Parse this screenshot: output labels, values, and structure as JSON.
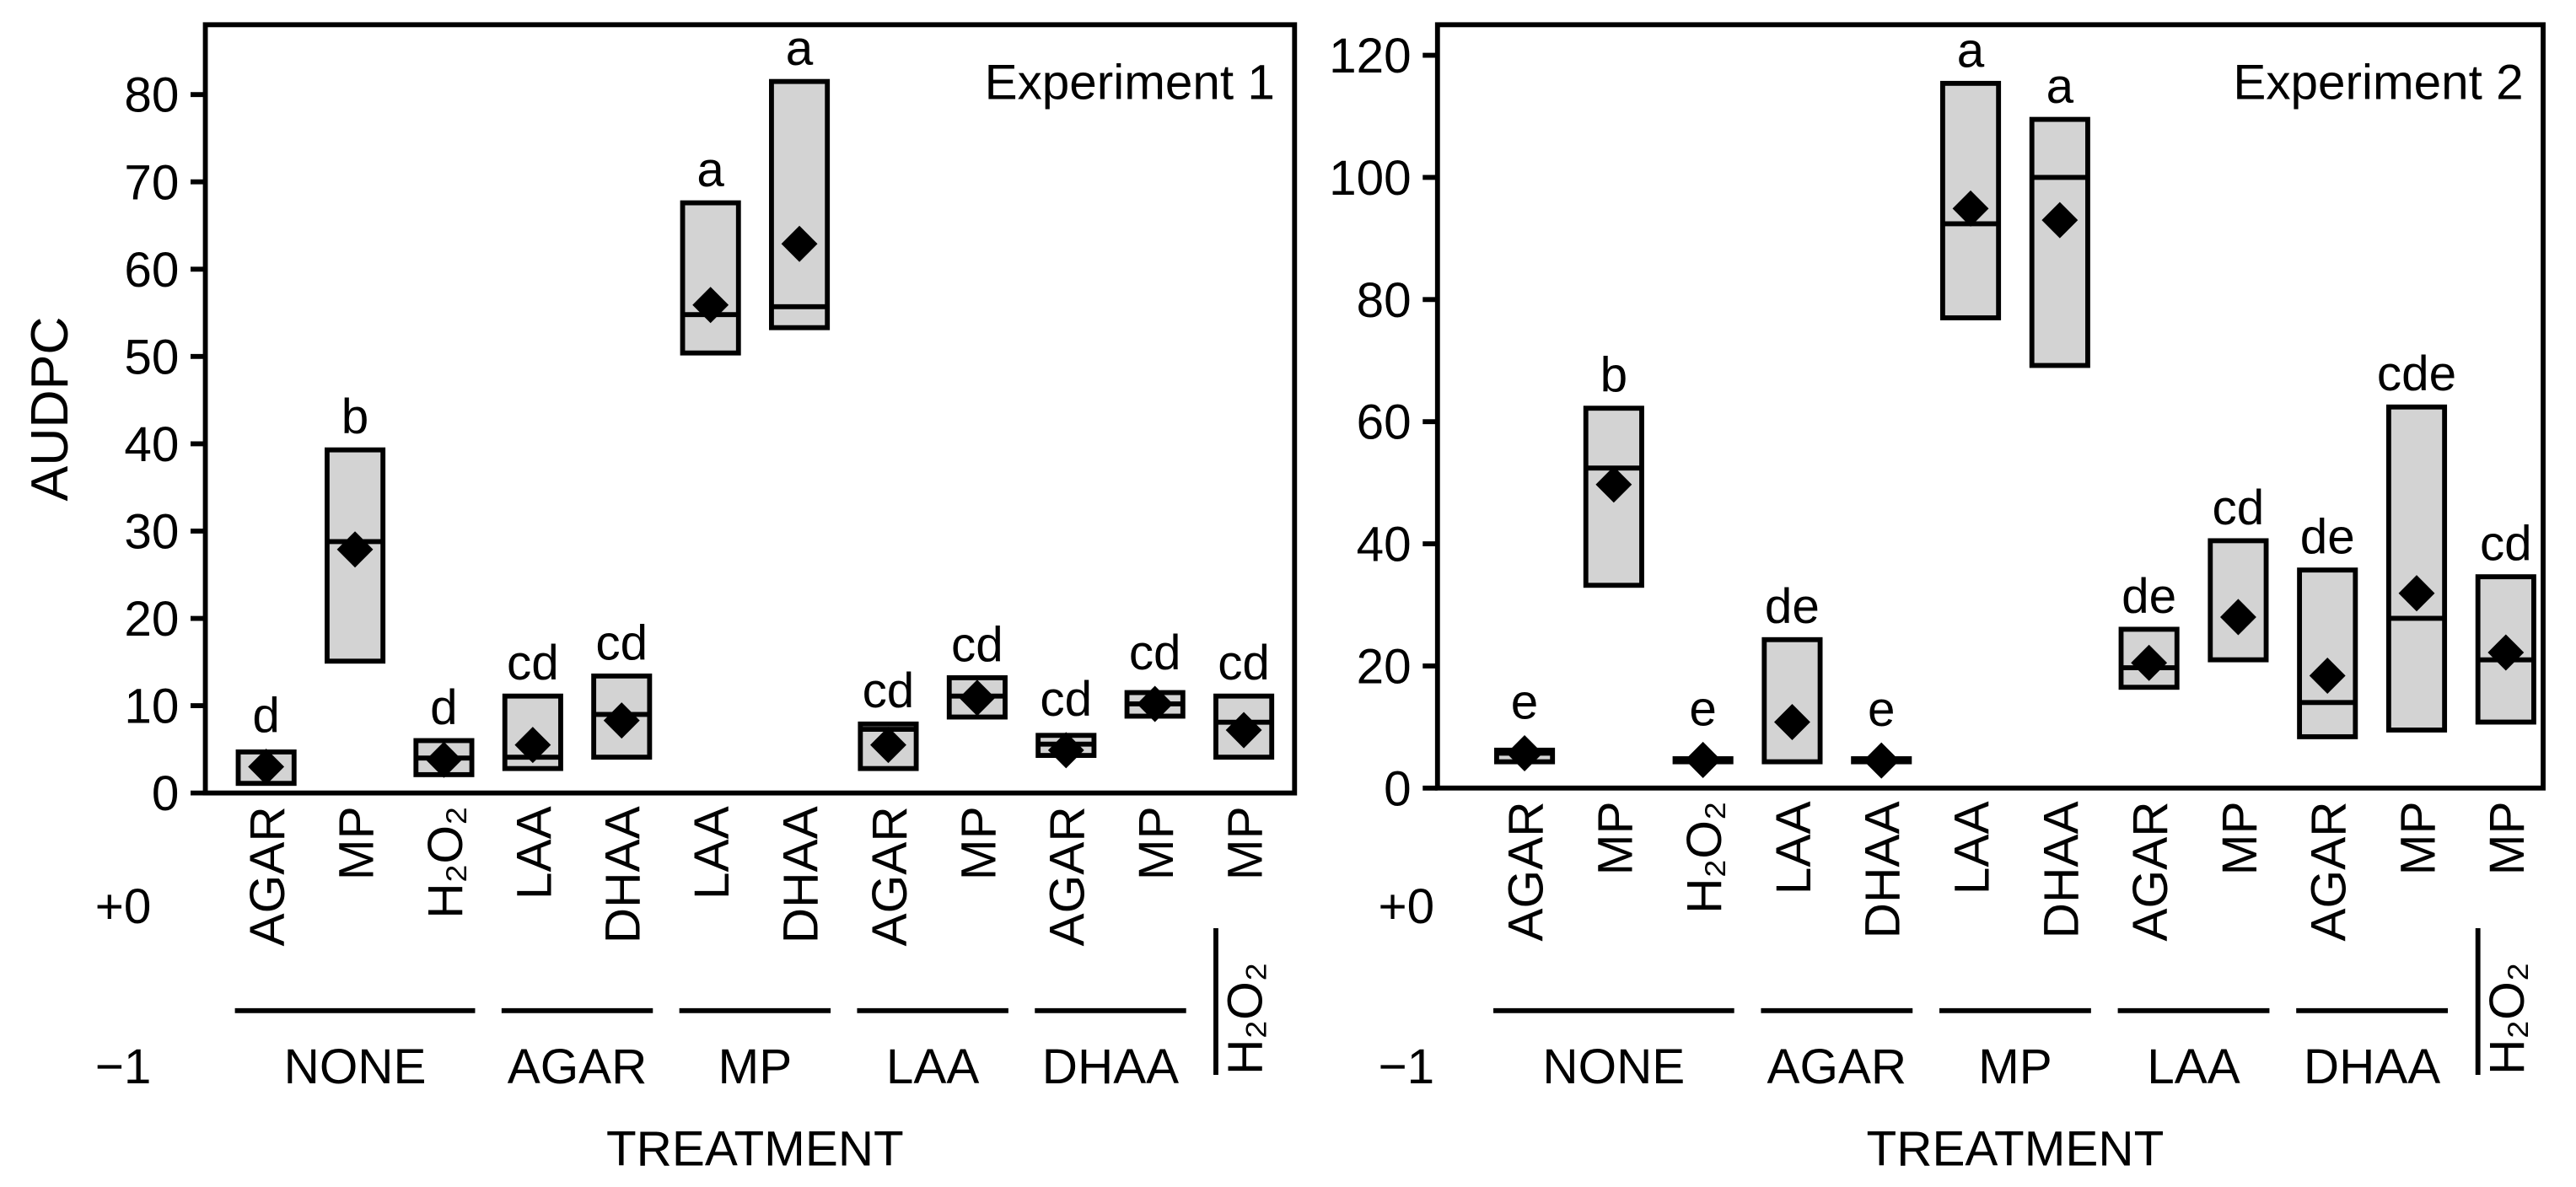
{
  "colors": {
    "background": "#ffffff",
    "box_fill": "#d3d3d3",
    "stroke": "#000000",
    "marker": "#000000"
  },
  "chart_data": [
    {
      "type": "bar",
      "title": "Experiment 1",
      "ylabel": "AUDPC",
      "xlabel": "TREATMENT",
      "ylim": [
        0,
        88
      ],
      "yticks": [
        0,
        10,
        20,
        30,
        40,
        50,
        60,
        70,
        80
      ],
      "row_labels": [
        "+0",
        "−1"
      ],
      "groups": [
        {
          "name": "NONE",
          "orientation": "horizontal"
        },
        {
          "name": "AGAR",
          "orientation": "horizontal"
        },
        {
          "name": "MP",
          "orientation": "horizontal"
        },
        {
          "name": "LAA",
          "orientation": "horizontal"
        },
        {
          "name": "DHAA",
          "orientation": "horizontal"
        },
        {
          "name": "H₂O₂",
          "orientation": "vertical"
        }
      ],
      "categories": [
        {
          "label": "AGAR",
          "group": "NONE",
          "low": 1.1,
          "high": 4.7,
          "median": null,
          "mean": 3.0,
          "letter": "d"
        },
        {
          "label": "MP",
          "group": "NONE",
          "low": 15.1,
          "high": 39.3,
          "median": 28.8,
          "mean": 27.9,
          "letter": "b"
        },
        {
          "label": "H₂O₂",
          "group": "NONE",
          "low": 2.1,
          "high": 6.0,
          "median": 4.0,
          "mean": 3.8,
          "letter": "d"
        },
        {
          "label": "LAA",
          "group": "AGAR",
          "low": 2.8,
          "high": 11.1,
          "median": 4.1,
          "mean": 5.5,
          "letter": "cd"
        },
        {
          "label": "DHAA",
          "group": "AGAR",
          "low": 4.1,
          "high": 13.4,
          "median": 9.0,
          "mean": 8.3,
          "letter": "cd"
        },
        {
          "label": "LAA",
          "group": "MP",
          "low": 50.4,
          "high": 67.6,
          "median": 54.8,
          "mean": 55.9,
          "letter": "a"
        },
        {
          "label": "DHAA",
          "group": "MP",
          "low": 53.3,
          "high": 81.5,
          "median": 55.7,
          "mean": 62.9,
          "letter": "a"
        },
        {
          "label": "AGAR",
          "group": "LAA",
          "low": 2.8,
          "high": 7.9,
          "median": 7.3,
          "mean": 5.5,
          "letter": "cd"
        },
        {
          "label": "MP",
          "group": "LAA",
          "low": 8.7,
          "high": 13.2,
          "median": 11.1,
          "mean": 10.9,
          "letter": "cd"
        },
        {
          "label": "AGAR",
          "group": "DHAA",
          "low": 4.3,
          "high": 6.6,
          "median": 5.6,
          "mean": 4.9,
          "letter": "cd"
        },
        {
          "label": "MP",
          "group": "DHAA",
          "low": 8.8,
          "high": 11.5,
          "median": 10.2,
          "mean": 10.2,
          "letter": "cd"
        },
        {
          "label": "MP",
          "group": "H₂O₂",
          "low": 4.1,
          "high": 11.1,
          "median": 8.1,
          "mean": 7.2,
          "letter": "cd"
        }
      ]
    },
    {
      "type": "bar",
      "title": "Experiment 2",
      "xlabel": "TREATMENT",
      "ylim": [
        0,
        125
      ],
      "yticks": [
        0,
        20,
        40,
        60,
        80,
        100,
        120
      ],
      "row_labels": [
        "+0",
        "−1"
      ],
      "groups": [
        {
          "name": "NONE",
          "orientation": "horizontal"
        },
        {
          "name": "AGAR",
          "orientation": "horizontal"
        },
        {
          "name": "MP",
          "orientation": "horizontal"
        },
        {
          "name": "LAA",
          "orientation": "horizontal"
        },
        {
          "name": "DHAA",
          "orientation": "horizontal"
        },
        {
          "name": "H₂O₂",
          "orientation": "vertical"
        }
      ],
      "categories": [
        {
          "label": "AGAR",
          "group": "NONE",
          "low": 4.3,
          "high": 6.2,
          "median": 5.7,
          "mean": 5.7,
          "letter": "e"
        },
        {
          "label": "MP",
          "group": "NONE",
          "low": 33.2,
          "high": 62.2,
          "median": 52.4,
          "mean": 49.7,
          "letter": "b"
        },
        {
          "label": "H₂O₂",
          "group": "NONE",
          "low": 4.3,
          "high": 4.8,
          "median": 4.6,
          "mean": 4.6,
          "letter": "e"
        },
        {
          "label": "LAA",
          "group": "AGAR",
          "low": 4.3,
          "high": 24.3,
          "median": null,
          "mean": 10.8,
          "letter": "de"
        },
        {
          "label": "DHAA",
          "group": "AGAR",
          "low": 4.3,
          "high": 4.8,
          "median": 4.5,
          "mean": 4.5,
          "letter": "e"
        },
        {
          "label": "LAA",
          "group": "MP",
          "low": 77.0,
          "high": 115.4,
          "median": 92.4,
          "mean": 94.9,
          "letter": "a"
        },
        {
          "label": "DHAA",
          "group": "MP",
          "low": 69.2,
          "high": 109.5,
          "median": 100.0,
          "mean": 93.0,
          "letter": "a"
        },
        {
          "label": "AGAR",
          "group": "LAA",
          "low": 16.5,
          "high": 26.0,
          "median": 19.7,
          "mean": 20.5,
          "letter": "de"
        },
        {
          "label": "MP",
          "group": "LAA",
          "low": 21.0,
          "high": 40.5,
          "median": null,
          "mean": 28.0,
          "letter": "cd"
        },
        {
          "label": "AGAR",
          "group": "DHAA",
          "low": 8.4,
          "high": 35.7,
          "median": 14.0,
          "mean": 18.4,
          "letter": "de"
        },
        {
          "label": "MP",
          "group": "DHAA",
          "low": 9.5,
          "high": 62.4,
          "median": 27.8,
          "mean": 31.9,
          "letter": "cde"
        },
        {
          "label": "MP",
          "group": "H₂O₂",
          "low": 10.8,
          "high": 34.6,
          "median": 21.0,
          "mean": 22.2,
          "letter": "cd"
        }
      ]
    }
  ]
}
